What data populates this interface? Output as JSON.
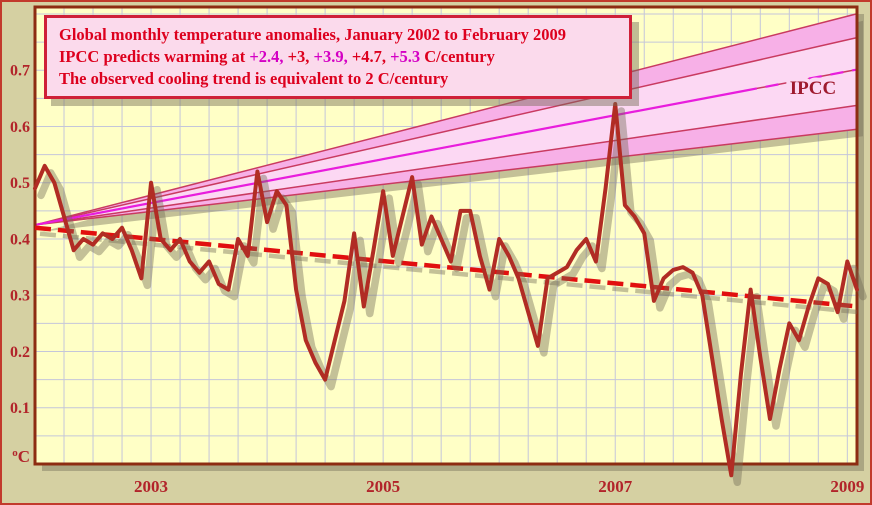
{
  "legend": {
    "line1": "Global monthly temperature anomalies, January 2002 to February 2009",
    "line2_segments": [
      {
        "text": "IPCC predicts warming at ",
        "color": "#dd001e"
      },
      {
        "text": "+2.4,",
        "color": "#d400c4"
      },
      {
        "text": " +3, ",
        "color": "#dd001e"
      },
      {
        "text": "+3.9,",
        "color": "#d400c4"
      },
      {
        "text": " +4.7, ",
        "color": "#dd001e"
      },
      {
        "text": "+5.3",
        "color": "#d400c4"
      },
      {
        "text": " C/century",
        "color": "#dd001e"
      }
    ],
    "line3": "The observed cooling trend is equivalent to 2 C/century"
  },
  "colors": {
    "margin_bg": "#d5d0a2",
    "outer_border": "#c23a2c",
    "plot_bg": "#ffffc6",
    "plot_border": "#8d2c12",
    "grid": "#c4c6da",
    "shadow": "rgba(115,108,85,0.42)",
    "data_line": "#b12c24",
    "trend_line": "#e10f0f",
    "fan_band_outer": "#f7b0e7",
    "fan_band_inner": "#fcd8f3",
    "fan_edge": "#c93a60",
    "fan_center": "#e81ddd",
    "axis_label": "#b2242a",
    "legend_text_red": "#dd001e",
    "legend_text_magenta": "#d400c4",
    "legend_bg": "#fbdaec",
    "legend_border": "#cf2038",
    "ipcc_label_color": "#9e1a2e"
  },
  "chart_data": {
    "type": "line",
    "title": "Global monthly temperature anomalies, January 2002 to February 2009",
    "xlabel": "",
    "ylabel": "oC anomaly",
    "x_range": {
      "start": "Jan 2002",
      "end": "Feb 2009",
      "months": 86
    },
    "x_tick_labels": [
      "2003",
      "2005",
      "2007",
      "2009"
    ],
    "x_tick_month_indices": [
      12,
      36,
      60,
      84
    ],
    "y_tick_labels": [
      "0.1",
      "0.2",
      "0.3",
      "0.4",
      "0.5",
      "0.6",
      "0.7"
    ],
    "y_tick_values": [
      0.1,
      0.2,
      0.3,
      0.4,
      0.5,
      0.6,
      0.7
    ],
    "y_unit_sup": "o",
    "y_unit_main": "C",
    "ylim": [
      0,
      0.8124
    ],
    "grid": {
      "x_step_months": 3,
      "y_step": 0.05
    },
    "legend_position": "top-left",
    "series": [
      {
        "name": "Observed global monthly temperature anomaly (C)",
        "values": [
          0.49,
          0.53,
          0.5,
          0.44,
          0.38,
          0.4,
          0.39,
          0.41,
          0.4,
          0.42,
          0.38,
          0.33,
          0.5,
          0.4,
          0.38,
          0.4,
          0.36,
          0.34,
          0.36,
          0.32,
          0.31,
          0.4,
          0.37,
          0.52,
          0.43,
          0.485,
          0.46,
          0.31,
          0.22,
          0.18,
          0.15,
          0.22,
          0.29,
          0.41,
          0.28,
          0.38,
          0.485,
          0.37,
          0.44,
          0.51,
          0.39,
          0.44,
          0.4,
          0.36,
          0.45,
          0.45,
          0.37,
          0.31,
          0.4,
          0.37,
          0.33,
          0.27,
          0.21,
          0.33,
          0.34,
          0.35,
          0.38,
          0.4,
          0.36,
          0.49,
          0.64,
          0.46,
          0.44,
          0.41,
          0.29,
          0.33,
          0.345,
          0.35,
          0.34,
          0.3,
          0.19,
          0.08,
          -0.02,
          0.16,
          0.31,
          0.19,
          0.08,
          0.17,
          0.25,
          0.22,
          0.28,
          0.33,
          0.32,
          0.27,
          0.36,
          0.31
        ]
      }
    ],
    "trend_line": {
      "name": "Observed cooling trend",
      "start_value": 0.42,
      "end_value": 0.28,
      "rate_c_per_century": -2
    },
    "ipcc_fan": {
      "label": "IPCC",
      "start_value": 0.425,
      "slopes_c_per_century": [
        2.4,
        3.0,
        3.9,
        4.7,
        5.3
      ]
    }
  }
}
